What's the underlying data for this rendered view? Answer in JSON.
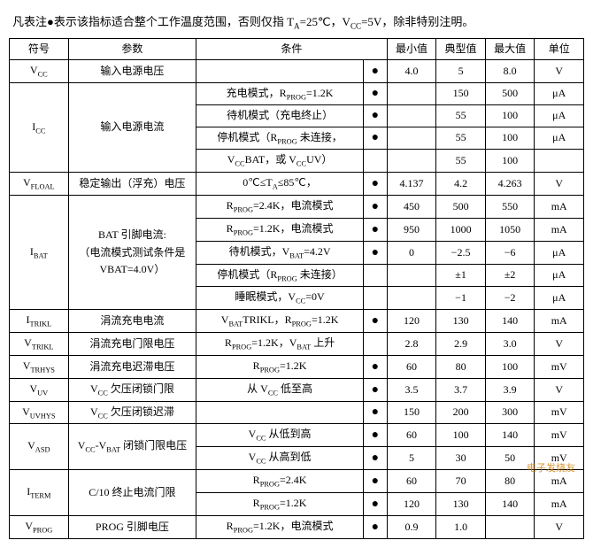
{
  "header_note": "凡表注●表示该指标适合整个工作温度范围，否则仅指 T_A=25℃，V_CC=5V，除非特别注明。",
  "columns": {
    "symbol": "符号",
    "param": "参数",
    "condition": "条件",
    "min": "最小值",
    "typ": "典型值",
    "max": "最大值",
    "unit": "单位"
  },
  "rows": [
    {
      "sym": "V_CC",
      "param": "输入电源电压",
      "cond": "",
      "dot": "●",
      "min": "4.0",
      "typ": "5",
      "max": "8.0",
      "unit": "V"
    },
    {
      "sym": "I_CC",
      "param": "输入电源电流",
      "rowspan": 4,
      "sub": [
        {
          "cond": "充电模式，R_PROG=1.2K",
          "dot": "●",
          "min": "",
          "typ": "150",
          "max": "500",
          "unit": "μA"
        },
        {
          "cond": "待机模式（充电终止）",
          "dot": "●",
          "min": "",
          "typ": "55",
          "max": "100",
          "unit": "μA"
        },
        {
          "cond": "停机模式（R_PROG 未连接，",
          "dot": "●",
          "min": "",
          "typ": "55",
          "max": "100",
          "unit": "μA"
        },
        {
          "cond": "V_CC<V_BAT，或 V_CC<V_UV）",
          "dot": "",
          "min": "",
          "typ": "55",
          "max": "100",
          "unit": ""
        }
      ]
    },
    {
      "sym": "V_FLOAL",
      "param": "稳定输出（浮充）电压",
      "cond": "0℃≤T_A≤85℃，",
      "dot": "●",
      "min": "4.137",
      "typ": "4.2",
      "max": "4.263",
      "unit": "V"
    },
    {
      "sym": "I_BAT",
      "param_lines": [
        "BAT 引脚电流:",
        "（电流模式测试条件是",
        "VBAT=4.0V）"
      ],
      "rowspan": 5,
      "sub": [
        {
          "cond": "R_PROG=2.4K，电流模式",
          "dot": "●",
          "min": "450",
          "typ": "500",
          "max": "550",
          "unit": "mA"
        },
        {
          "cond": "R_PROG=1.2K，电流模式",
          "dot": "●",
          "min": "950",
          "typ": "1000",
          "max": "1050",
          "unit": "mA"
        },
        {
          "cond": "待机模式，V_BAT=4.2V",
          "dot": "●",
          "min": "0",
          "typ": "−2.5",
          "max": "−6",
          "unit": "μA"
        },
        {
          "cond": "停机模式（R_PROG 未连接）",
          "dot": "",
          "min": "",
          "typ": "±1",
          "max": "±2",
          "unit": "μA"
        },
        {
          "cond": "睡眠模式，V_CC=0V",
          "dot": "",
          "min": "",
          "typ": "−1",
          "max": "−2",
          "unit": "μA"
        }
      ]
    },
    {
      "sym": "I_TRIKL",
      "param": "涓流充电电流",
      "cond": "V_BAT<V_TRIKL，R_PROG=1.2K",
      "dot": "●",
      "min": "120",
      "typ": "130",
      "max": "140",
      "unit": "mA"
    },
    {
      "sym": "V_TRIKL",
      "param": "涓流充电门限电压",
      "cond": "R_PROG=1.2K，V_BAT 上升",
      "dot": "",
      "min": "2.8",
      "typ": "2.9",
      "max": "3.0",
      "unit": "V"
    },
    {
      "sym": "V_TRHYS",
      "param": "涓流充电迟滞电压",
      "cond": "R_PROG=1.2K",
      "dot": "●",
      "min": "60",
      "typ": "80",
      "max": "100",
      "unit": "mV"
    },
    {
      "sym": "V_UV",
      "param": "V_CC 欠压闭锁门限",
      "cond": "从 V_CC 低至高",
      "dot": "●",
      "min": "3.5",
      "typ": "3.7",
      "max": "3.9",
      "unit": "V"
    },
    {
      "sym": "V_UVHYS",
      "param": "V_CC 欠压闭锁迟滞",
      "cond": "",
      "dot": "●",
      "min": "150",
      "typ": "200",
      "max": "300",
      "unit": "mV"
    },
    {
      "sym": "V_ASD",
      "param": "V_CC-V_BAT 闭锁门限电压",
      "rowspan": 2,
      "sub": [
        {
          "cond": "V_CC 从低到高",
          "dot": "●",
          "min": "60",
          "typ": "100",
          "max": "140",
          "unit": "mV"
        },
        {
          "cond": "V_CC 从高到低",
          "dot": "●",
          "min": "5",
          "typ": "30",
          "max": "50",
          "unit": "mV"
        }
      ]
    },
    {
      "sym": "I_TERM",
      "param": "C/10 终止电流门限",
      "rowspan": 2,
      "sub": [
        {
          "cond": "R_PROG=2.4K",
          "dot": "●",
          "min": "60",
          "typ": "70",
          "max": "80",
          "unit": "mA"
        },
        {
          "cond": "R_PROG=1.2K",
          "dot": "●",
          "min": "120",
          "typ": "130",
          "max": "140",
          "unit": "mA"
        }
      ]
    },
    {
      "sym": "V_PROG",
      "param": "PROG 引脚电压",
      "cond": "R_PROG=1.2K，电流模式",
      "dot": "●",
      "min": "0.9",
      "typ": "1.0",
      "max": "",
      "unit": "V"
    }
  ],
  "watermark": "电子发烧友"
}
